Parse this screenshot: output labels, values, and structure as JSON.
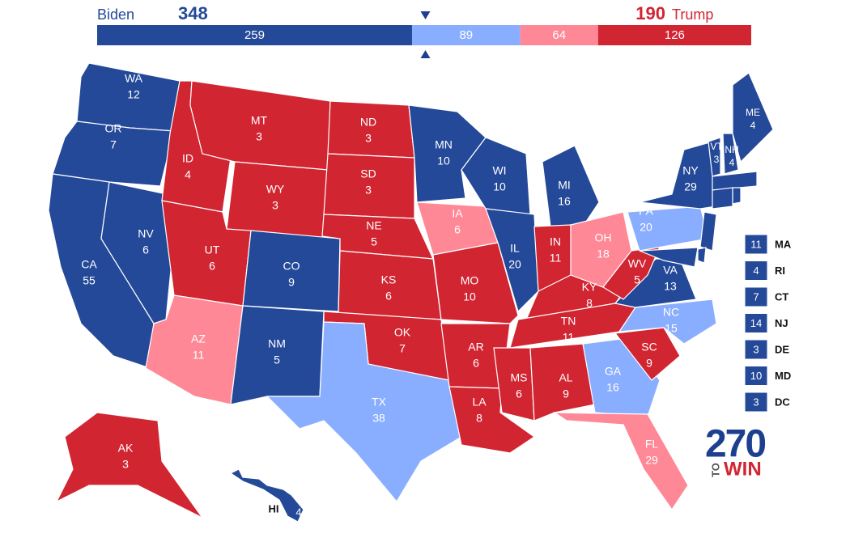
{
  "header": {
    "left_name": "Biden",
    "left_total": 348,
    "right_total": 190,
    "right_name": "Trump",
    "segments": [
      {
        "value": 259,
        "color": "#244999"
      },
      {
        "value": 89,
        "color": "#8aaeff"
      },
      {
        "value": 64,
        "color": "#ff8896"
      },
      {
        "value": 126,
        "color": "#d22532"
      }
    ]
  },
  "logo": {
    "number": 270,
    "to": "TO",
    "win": "WIN"
  },
  "states": [
    {
      "abbr": "WA",
      "votes": 12,
      "color": "#244999"
    },
    {
      "abbr": "OR",
      "votes": 7,
      "color": "#244999"
    },
    {
      "abbr": "CA",
      "votes": 55,
      "color": "#244999"
    },
    {
      "abbr": "NV",
      "votes": 6,
      "color": "#244999"
    },
    {
      "abbr": "ID",
      "votes": 4,
      "color": "#d22532"
    },
    {
      "abbr": "MT",
      "votes": 3,
      "color": "#d22532"
    },
    {
      "abbr": "WY",
      "votes": 3,
      "color": "#d22532"
    },
    {
      "abbr": "UT",
      "votes": 6,
      "color": "#d22532"
    },
    {
      "abbr": "AZ",
      "votes": 11,
      "color": "#ff8896"
    },
    {
      "abbr": "CO",
      "votes": 9,
      "color": "#244999"
    },
    {
      "abbr": "NM",
      "votes": 5,
      "color": "#244999"
    },
    {
      "abbr": "ND",
      "votes": 3,
      "color": "#d22532"
    },
    {
      "abbr": "SD",
      "votes": 3,
      "color": "#d22532"
    },
    {
      "abbr": "NE",
      "votes": 5,
      "color": "#d22532"
    },
    {
      "abbr": "KS",
      "votes": 6,
      "color": "#d22532"
    },
    {
      "abbr": "OK",
      "votes": 7,
      "color": "#d22532"
    },
    {
      "abbr": "TX",
      "votes": 38,
      "color": "#8aaeff"
    },
    {
      "abbr": "MN",
      "votes": 10,
      "color": "#244999"
    },
    {
      "abbr": "IA",
      "votes": 6,
      "color": "#ff8896"
    },
    {
      "abbr": "MO",
      "votes": 10,
      "color": "#d22532"
    },
    {
      "abbr": "AR",
      "votes": 6,
      "color": "#d22532"
    },
    {
      "abbr": "LA",
      "votes": 8,
      "color": "#d22532"
    },
    {
      "abbr": "WI",
      "votes": 10,
      "color": "#244999"
    },
    {
      "abbr": "IL",
      "votes": 20,
      "color": "#244999"
    },
    {
      "abbr": "MI",
      "votes": 16,
      "color": "#244999"
    },
    {
      "abbr": "IN",
      "votes": 11,
      "color": "#d22532"
    },
    {
      "abbr": "OH",
      "votes": 18,
      "color": "#ff8896"
    },
    {
      "abbr": "KY",
      "votes": 8,
      "color": "#d22532"
    },
    {
      "abbr": "TN",
      "votes": 11,
      "color": "#d22532"
    },
    {
      "abbr": "MS",
      "votes": 6,
      "color": "#d22532"
    },
    {
      "abbr": "AL",
      "votes": 9,
      "color": "#d22532"
    },
    {
      "abbr": "GA",
      "votes": 16,
      "color": "#8aaeff"
    },
    {
      "abbr": "FL",
      "votes": 29,
      "color": "#ff8896"
    },
    {
      "abbr": "SC",
      "votes": 9,
      "color": "#d22532"
    },
    {
      "abbr": "NC",
      "votes": 15,
      "color": "#8aaeff"
    },
    {
      "abbr": "VA",
      "votes": 13,
      "color": "#244999"
    },
    {
      "abbr": "WV",
      "votes": 5,
      "color": "#d22532"
    },
    {
      "abbr": "PA",
      "votes": 20,
      "color": "#8aaeff"
    },
    {
      "abbr": "NY",
      "votes": 29,
      "color": "#244999"
    },
    {
      "abbr": "VT",
      "votes": 3,
      "color": "#244999"
    },
    {
      "abbr": "NH",
      "votes": 4,
      "color": "#244999"
    },
    {
      "abbr": "ME",
      "votes": 4,
      "color": "#244999"
    },
    {
      "abbr": "AK",
      "votes": 3,
      "color": "#d22532"
    },
    {
      "abbr": "HI",
      "votes": 4,
      "color": "#244999"
    },
    {
      "abbr": "MA",
      "votes": 11,
      "color": "#244999"
    },
    {
      "abbr": "RI",
      "votes": 4,
      "color": "#244999"
    },
    {
      "abbr": "CT",
      "votes": 7,
      "color": "#244999"
    },
    {
      "abbr": "NJ",
      "votes": 14,
      "color": "#244999"
    },
    {
      "abbr": "DE",
      "votes": 3,
      "color": "#244999"
    },
    {
      "abbr": "MD",
      "votes": 10,
      "color": "#244999"
    },
    {
      "abbr": "DC",
      "votes": 3,
      "color": "#244999"
    }
  ]
}
